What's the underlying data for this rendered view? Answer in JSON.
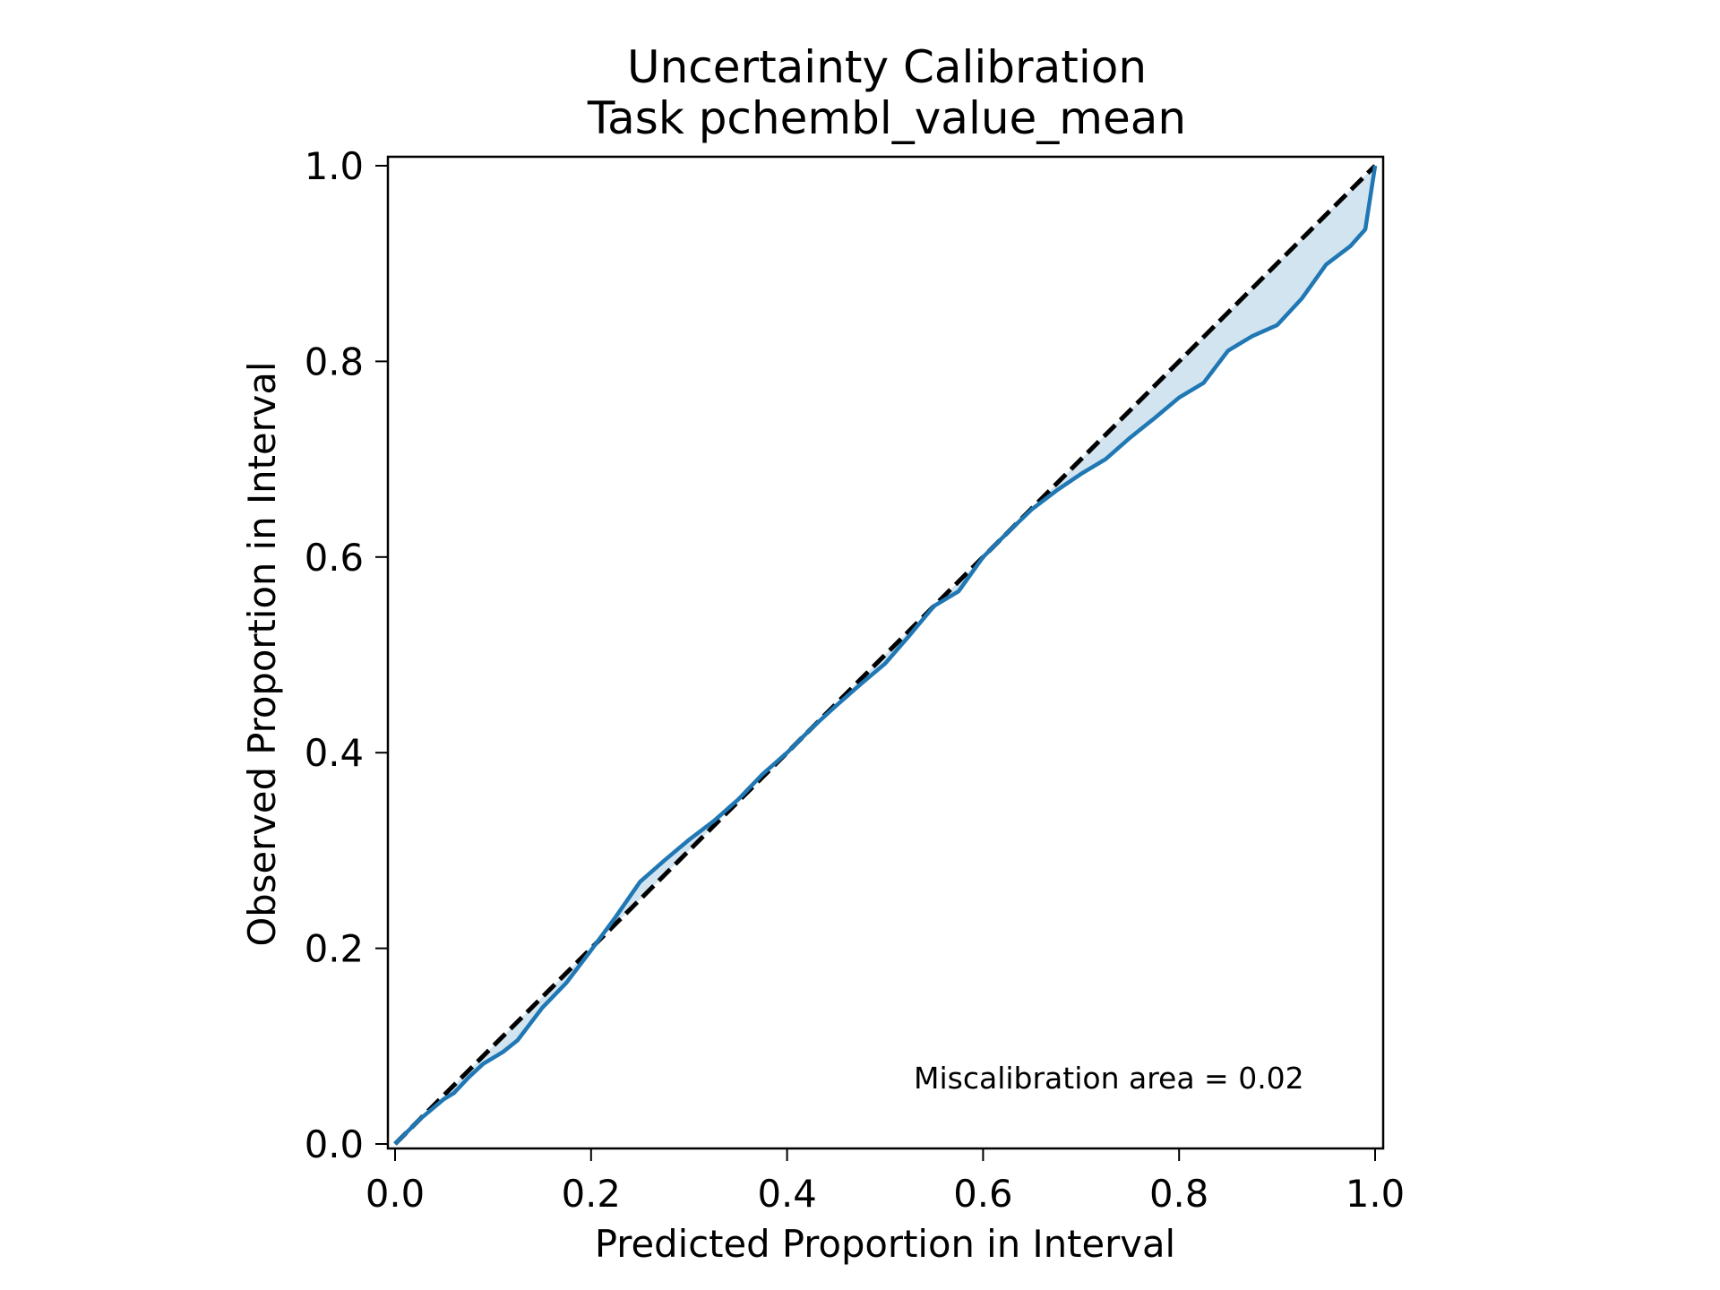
{
  "chart_data": {
    "type": "line",
    "title": "Uncertainty Calibration",
    "subtitle": "Task pchembl_value_mean",
    "xlabel": "Predicted Proportion in Interval",
    "ylabel": "Observed Proportion in Interval",
    "xlim": [
      0,
      1
    ],
    "ylim": [
      0,
      1
    ],
    "xticks": [
      "0.0",
      "0.2",
      "0.4",
      "0.6",
      "0.8",
      "1.0"
    ],
    "yticks": [
      "0.0",
      "0.2",
      "0.4",
      "0.6",
      "0.8",
      "1.0"
    ],
    "grid": false,
    "annotation": "Miscalibration area = 0.02",
    "ideal_line": {
      "x": [
        0,
        1
      ],
      "y": [
        0,
        1
      ],
      "color": "#000000",
      "style": "dashed"
    },
    "series": [
      {
        "color": "#1f77b4",
        "fill_color": "#1f77b4",
        "x": [
          0,
          0.01,
          0.025,
          0.05,
          0.06,
          0.075,
          0.09,
          0.1,
          0.11,
          0.125,
          0.15,
          0.175,
          0.2,
          0.225,
          0.25,
          0.275,
          0.3,
          0.325,
          0.35,
          0.375,
          0.4,
          0.425,
          0.45,
          0.475,
          0.5,
          0.525,
          0.55,
          0.575,
          0.6,
          0.625,
          0.65,
          0.675,
          0.7,
          0.725,
          0.75,
          0.775,
          0.8,
          0.825,
          0.85,
          0.875,
          0.9,
          0.925,
          0.95,
          0.975,
          0.99,
          1.0
        ],
        "y": [
          0,
          0.01,
          0.025,
          0.046,
          0.052,
          0.068,
          0.082,
          0.088,
          0.094,
          0.106,
          0.139,
          0.165,
          0.198,
          0.232,
          0.268,
          0.29,
          0.311,
          0.33,
          0.352,
          0.378,
          0.4,
          0.425,
          0.448,
          0.47,
          0.491,
          0.52,
          0.55,
          0.565,
          0.6,
          0.625,
          0.649,
          0.668,
          0.685,
          0.7,
          0.722,
          0.742,
          0.763,
          0.778,
          0.811,
          0.826,
          0.837,
          0.864,
          0.899,
          0.918,
          0.935,
          1.0
        ]
      }
    ]
  }
}
